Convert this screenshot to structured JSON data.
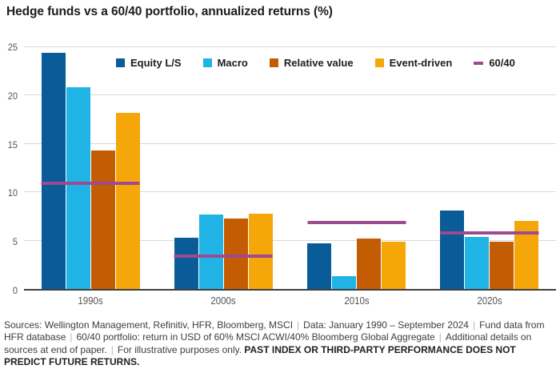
{
  "title": "Hedge funds vs a 60/40 portfolio, annualized returns (%)",
  "chart_data": {
    "type": "bar",
    "title": "Hedge funds vs a 60/40 portfolio, annualized returns (%)",
    "categories": [
      "1990s",
      "2000s",
      "2010s",
      "2020s"
    ],
    "series": [
      {
        "name": "Equity L/S",
        "render": "bar",
        "color": "#0a5c99",
        "values": [
          24.4,
          5.3,
          4.7,
          8.1
        ]
      },
      {
        "name": "Macro",
        "render": "bar",
        "color": "#20b3e5",
        "values": [
          20.9,
          7.7,
          1.3,
          5.4
        ]
      },
      {
        "name": "Relative value",
        "render": "bar",
        "color": "#c45c04",
        "values": [
          14.3,
          7.3,
          5.2,
          4.9
        ]
      },
      {
        "name": "Event-driven",
        "render": "bar",
        "color": "#f5a70a",
        "values": [
          18.2,
          7.8,
          4.9,
          7.0
        ]
      },
      {
        "name": "60/40",
        "render": "line",
        "color": "#9e4a8e",
        "values": [
          10.9,
          3.4,
          6.9,
          5.8
        ]
      }
    ],
    "xlabel": "",
    "ylabel": "",
    "ylim": [
      0,
      25
    ],
    "yticks": [
      0,
      5,
      10,
      15,
      20,
      25
    ],
    "grid": true,
    "legend_position": "top-inside",
    "gridline_color": "#d9d9d9",
    "axis_color": "#3f3f3f",
    "tick_label_color": "#555555"
  },
  "footer": {
    "segments": [
      {
        "text": "Sources: Wellington Management, Refinitiv, HFR, Bloomberg, MSCI",
        "bold": false,
        "sep_after": true
      },
      {
        "text": "Data: January 1990 – September 2024",
        "bold": false,
        "sep_after": true
      },
      {
        "text": "Fund data from HFR database",
        "bold": false,
        "sep_after": true
      },
      {
        "text": "60/40 portfolio: return in USD of 60% MSCI ACWI/40% Bloomberg Global Aggregate",
        "bold": false,
        "sep_after": true
      },
      {
        "text": "Additional details on sources at end of paper.",
        "bold": false,
        "sep_after": true
      },
      {
        "text": "For illustrative purposes only. ",
        "bold": false,
        "sep_after": false
      },
      {
        "text": "PAST INDEX OR THIRD-PARTY PERFORMANCE DOES NOT PREDICT FUTURE RETURNS.",
        "bold": true,
        "sep_after": false
      }
    ]
  }
}
